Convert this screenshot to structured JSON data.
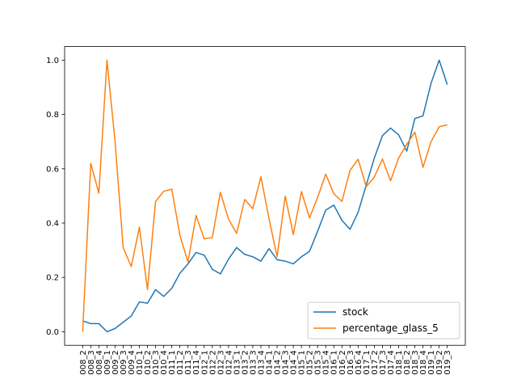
{
  "chart_data": {
    "type": "line",
    "x": [
      "008_2",
      "008_3",
      "008_4",
      "009_1",
      "009_2",
      "009_3",
      "009_4",
      "010_1",
      "010_2",
      "010_3",
      "010_4",
      "011_1",
      "011_2",
      "011_3",
      "011_4",
      "012_1",
      "012_2",
      "012_3",
      "012_4",
      "013_1",
      "013_2",
      "013_3",
      "013_4",
      "014_1",
      "014_2",
      "014_3",
      "014_4",
      "015_1",
      "015_2",
      "015_3",
      "015_4",
      "016_1",
      "016_2",
      "016_3",
      "016_4",
      "017_1",
      "017_2",
      "017_3",
      "017_4",
      "018_1",
      "018_2",
      "018_3",
      "018_4",
      "019_1",
      "019_2",
      "019_3"
    ],
    "x_tick_labels_displayed": [
      "008_2",
      "008_3",
      "008_4",
      "009_1",
      "009_2",
      "009_3",
      "009_4",
      "010_1",
      "010_2",
      "010_3",
      "010_4",
      "011_1",
      "011_2",
      "011_3",
      "011_4",
      "012_1",
      "012_2",
      "012_3",
      "012_4",
      "013_1",
      "013_2",
      "013_3",
      "013_4",
      "014_1",
      "014_2",
      "014_3",
      "014_4",
      "015_1",
      "015_2",
      "015_3",
      "015_4",
      "016_1",
      "016_2",
      "016_3",
      "016_4",
      "017_1",
      "017_2",
      "017_3",
      "017_4",
      "018_1",
      "018_2",
      "018_3",
      "018_4",
      "019_1",
      "019_2",
      "019_3"
    ],
    "series": [
      {
        "name": "stock",
        "color": "#1f77b4",
        "values": [
          0.04,
          0.03,
          0.03,
          0.0,
          0.012,
          0.035,
          0.058,
          0.11,
          0.105,
          0.155,
          0.13,
          0.16,
          0.215,
          0.25,
          0.292,
          0.282,
          0.23,
          0.213,
          0.267,
          0.31,
          0.285,
          0.276,
          0.26,
          0.306,
          0.265,
          0.26,
          0.25,
          0.276,
          0.296,
          0.37,
          0.448,
          0.466,
          0.41,
          0.377,
          0.44,
          0.54,
          0.64,
          0.722,
          0.75,
          0.725,
          0.665,
          0.785,
          0.795,
          0.915,
          1.0,
          0.91
        ]
      },
      {
        "name": "percentage_glass_5",
        "color": "#ff7f0e",
        "values": [
          0.0,
          0.62,
          0.51,
          1.0,
          0.7,
          0.31,
          0.24,
          0.385,
          0.155,
          0.48,
          0.517,
          0.525,
          0.355,
          0.257,
          0.428,
          0.342,
          0.347,
          0.513,
          0.415,
          0.362,
          0.487,
          0.453,
          0.571,
          0.416,
          0.276,
          0.499,
          0.358,
          0.516,
          0.419,
          0.495,
          0.58,
          0.508,
          0.48,
          0.594,
          0.635,
          0.534,
          0.57,
          0.636,
          0.556,
          0.64,
          0.69,
          0.735,
          0.605,
          0.7,
          0.755,
          0.762
        ]
      }
    ],
    "y_ticks": [
      "0.0",
      "0.2",
      "0.4",
      "0.6",
      "0.8",
      "1.0"
    ],
    "ylim": [
      -0.05,
      1.05
    ],
    "title": "",
    "xlabel": "",
    "ylabel": "",
    "grid": false,
    "legend_position": "lower-right"
  }
}
